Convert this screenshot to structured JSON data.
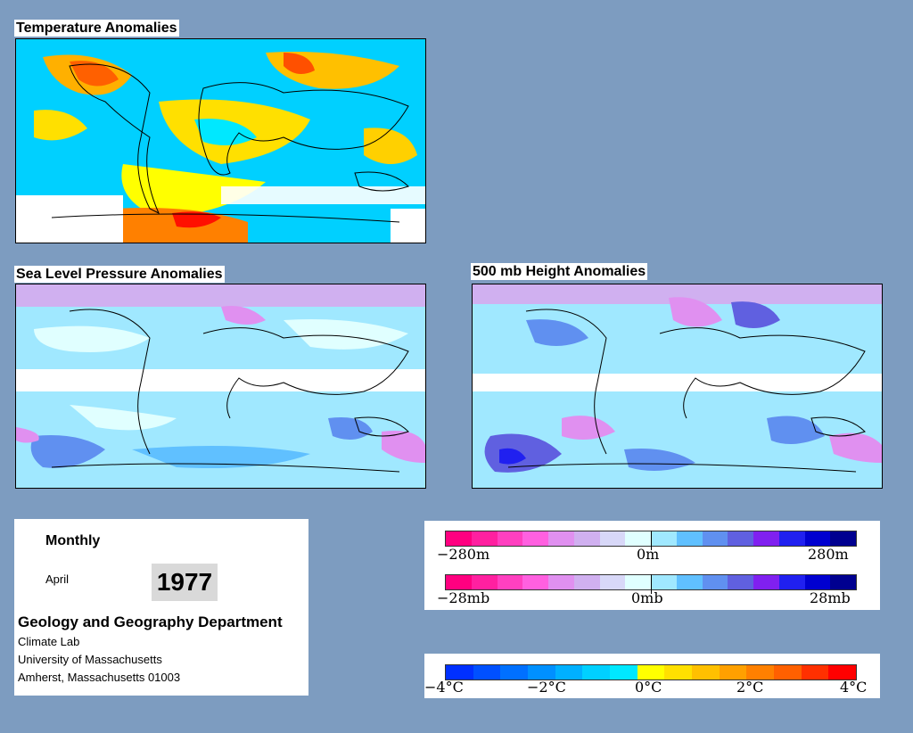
{
  "panels": {
    "temperature_title": "Temperature Anomalies",
    "slp_title": "Sea Level Pressure Anomalies",
    "height_title": "500 mb Height Anomalies"
  },
  "info": {
    "period": "Monthly",
    "month": "April",
    "year": "1977",
    "department": "Geology and Geography Department",
    "lab": "Climate Lab",
    "university": "University of Massachusetts",
    "address": "Amherst, Massachusetts 01003"
  },
  "legends": {
    "height": {
      "min": "−280m",
      "mid": "0m",
      "max": "280m"
    },
    "pressure": {
      "min": "−28mb",
      "mid": "0mb",
      "max": "28mb"
    },
    "temperature": {
      "t1": "−4°C",
      "t2": "−2°C",
      "t3": "0°C",
      "t4": "2°C",
      "t5": "4°C"
    }
  },
  "colors": {
    "background": "#7d9cc0",
    "anomaly_scale": [
      "#ff0080",
      "#ff20a0",
      "#ff40c0",
      "#ff60e0",
      "#e090f0",
      "#d0b0f0",
      "#d8d8f8",
      "#e0ffff",
      "#a0e8ff",
      "#60c0ff",
      "#6090f0",
      "#6060e0",
      "#8020f0",
      "#2020f0",
      "#0000d0",
      "#000090"
    ],
    "temperature_scale": [
      "#0030ff",
      "#0050ff",
      "#0070ff",
      "#0090ff",
      "#00b0ff",
      "#00d0ff",
      "#00e8ff",
      "#ffff00",
      "#ffe000",
      "#ffc000",
      "#ffa000",
      "#ff8000",
      "#ff6000",
      "#ff3000",
      "#ff0000"
    ]
  }
}
